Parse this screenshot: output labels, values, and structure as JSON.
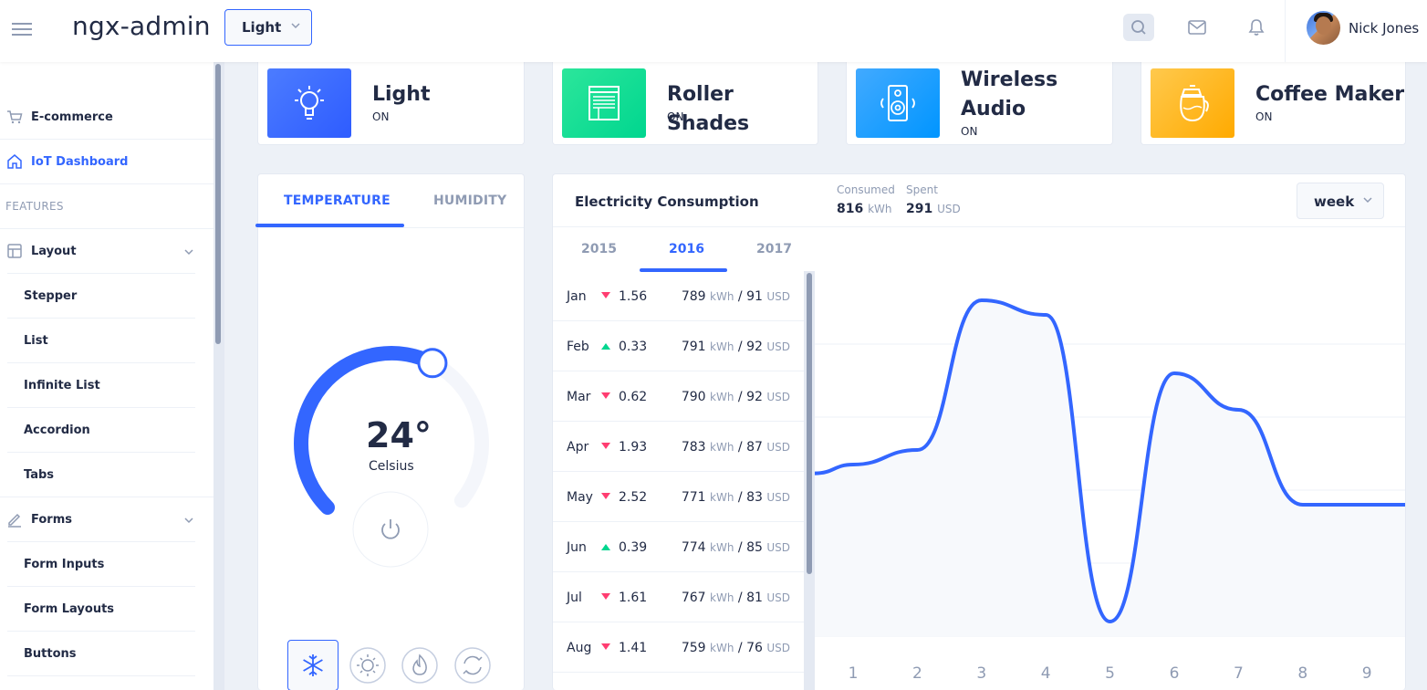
{
  "header": {
    "app_title": "ngx-admin",
    "theme": "Light",
    "user_name": "Nick Jones"
  },
  "sidebar": {
    "items": [
      {
        "label": "E-commerce"
      },
      {
        "label": "IoT Dashboard"
      }
    ],
    "group_label": "FEATURES",
    "layout": {
      "label": "Layout",
      "children": [
        "Stepper",
        "List",
        "Infinite List",
        "Accordion",
        "Tabs"
      ]
    },
    "forms": {
      "label": "Forms",
      "children": [
        "Form Inputs",
        "Form Layouts",
        "Buttons"
      ]
    }
  },
  "devices": [
    {
      "title": "Light",
      "status": "ON",
      "icon": "light-bulb-icon",
      "color_from": "#4c7cff",
      "color_to": "#2e5cff"
    },
    {
      "title": "Roller Shades",
      "status": "ON",
      "icon": "roller-shades-icon",
      "color_from": "#2ce69b",
      "color_to": "#00d68f"
    },
    {
      "title": "Wireless Audio",
      "status": "ON",
      "icon": "speaker-icon",
      "color_from": "#42aaff",
      "color_to": "#0095ff"
    },
    {
      "title": "Coffee Maker",
      "status": "ON",
      "icon": "coffee-maker-icon",
      "color_from": "#ffc94d",
      "color_to": "#ffaa00"
    }
  ],
  "temperature": {
    "tabs": [
      "TEMPERATURE",
      "HUMIDITY"
    ],
    "value": "24°",
    "unit": "Celsius",
    "dial_fraction": 0.6,
    "modes": [
      "snowflake-icon",
      "sun-icon",
      "flame-icon",
      "recycle-icon"
    ]
  },
  "electricity": {
    "title": "Electricity Consumption",
    "consumed_label": "Consumed",
    "consumed_value": "816",
    "consumed_unit": "kWh",
    "spent_label": "Spent",
    "spent_value": "291",
    "spent_unit": "USD",
    "period": "week",
    "years": [
      "2015",
      "2016",
      "2017"
    ],
    "selected_year": "2016",
    "months": [
      {
        "month": "Jan",
        "trend": "down",
        "delta": "1.56",
        "kwh": "789",
        "usd": "91"
      },
      {
        "month": "Feb",
        "trend": "up",
        "delta": "0.33",
        "kwh": "791",
        "usd": "92"
      },
      {
        "month": "Mar",
        "trend": "down",
        "delta": "0.62",
        "kwh": "790",
        "usd": "92"
      },
      {
        "month": "Apr",
        "trend": "down",
        "delta": "1.93",
        "kwh": "783",
        "usd": "87"
      },
      {
        "month": "May",
        "trend": "down",
        "delta": "2.52",
        "kwh": "771",
        "usd": "83"
      },
      {
        "month": "Jun",
        "trend": "up",
        "delta": "0.39",
        "kwh": "774",
        "usd": "85"
      },
      {
        "month": "Jul",
        "trend": "down",
        "delta": "1.61",
        "kwh": "767",
        "usd": "81"
      },
      {
        "month": "Aug",
        "trend": "down",
        "delta": "1.41",
        "kwh": "759",
        "usd": "76"
      }
    ],
    "unit_kwh": "kWh",
    "unit_usd": "USD",
    "colors": {
      "accent": "#3366ff",
      "down": "#ff3d71",
      "up": "#00d68f"
    }
  },
  "chart_data": {
    "type": "line",
    "x": [
      "1",
      "2",
      "3",
      "4",
      "5",
      "6",
      "7",
      "8",
      "9"
    ],
    "series": [
      {
        "values": [
          2.35,
          2.55,
          4.6,
          4.4,
          0.2,
          3.6,
          3.1,
          1.8,
          1.8
        ]
      }
    ],
    "ylim": [
      0,
      5
    ],
    "grid": true
  }
}
